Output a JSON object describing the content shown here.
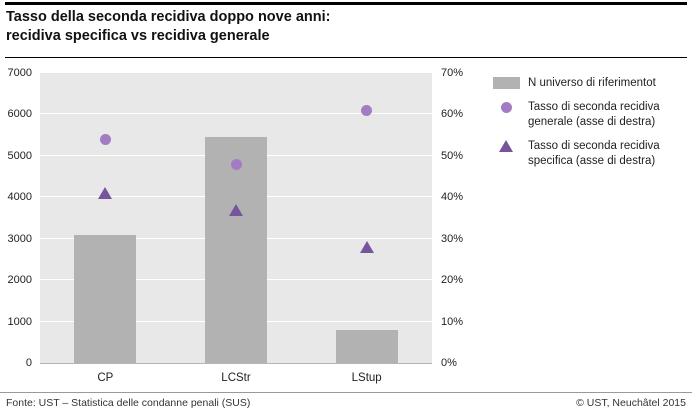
{
  "header": {
    "title_line1": "Tasso della seconda recidiva doppo nove anni:",
    "title_line2": "recidiva specifica vs recidiva generale"
  },
  "legend": {
    "items": [
      {
        "type": "square",
        "label": "N universo di riferimentot",
        "color": "#b2b2b2"
      },
      {
        "type": "circle",
        "label": "Tasso di seconda recidiva generale (asse di destra)",
        "color": "#a47cc2"
      },
      {
        "type": "triangle",
        "label": "Tasso di seconda recidiva specifica (asse di destra)",
        "color": "#77559c"
      }
    ]
  },
  "chart_data": {
    "type": "bar",
    "title": "Tasso della seconda recidiva doppo nove anni: recidiva specifica vs recidiva generale",
    "categories": [
      "CP",
      "LCStr",
      "LStup"
    ],
    "series": [
      {
        "name": "N universo di riferimento",
        "type": "bar",
        "axis": "left",
        "values": [
          3100,
          5450,
          800
        ],
        "color": "#b2b2b2"
      },
      {
        "name": "Tasso di seconda recidiva generale (asse di destra)",
        "type": "circle",
        "axis": "right",
        "values": [
          54,
          48,
          61
        ],
        "color": "#a47cc2"
      },
      {
        "name": "Tasso di seconda recidiva specifica (asse di destra)",
        "type": "triangle",
        "axis": "right",
        "values": [
          41,
          37,
          28
        ],
        "color": "#77559c"
      }
    ],
    "left_axis": {
      "min": 0,
      "max": 7000,
      "step": 1000,
      "ticks": [
        "0",
        "1000",
        "2000",
        "3000",
        "4000",
        "5000",
        "6000",
        "7000"
      ]
    },
    "right_axis": {
      "min": 0,
      "max": 70,
      "step": 10,
      "ticks": [
        "0%",
        "10%",
        "20%",
        "30%",
        "40%",
        "50%",
        "60%",
        "70%"
      ]
    },
    "grid": true,
    "plot_background": "#e8e8e8",
    "legend_position": "right"
  },
  "footer": {
    "source": "Fonte: UST – Statistica delle condanne penali (SUS)",
    "copyright": "© UST, Neuchâtel 2015"
  }
}
